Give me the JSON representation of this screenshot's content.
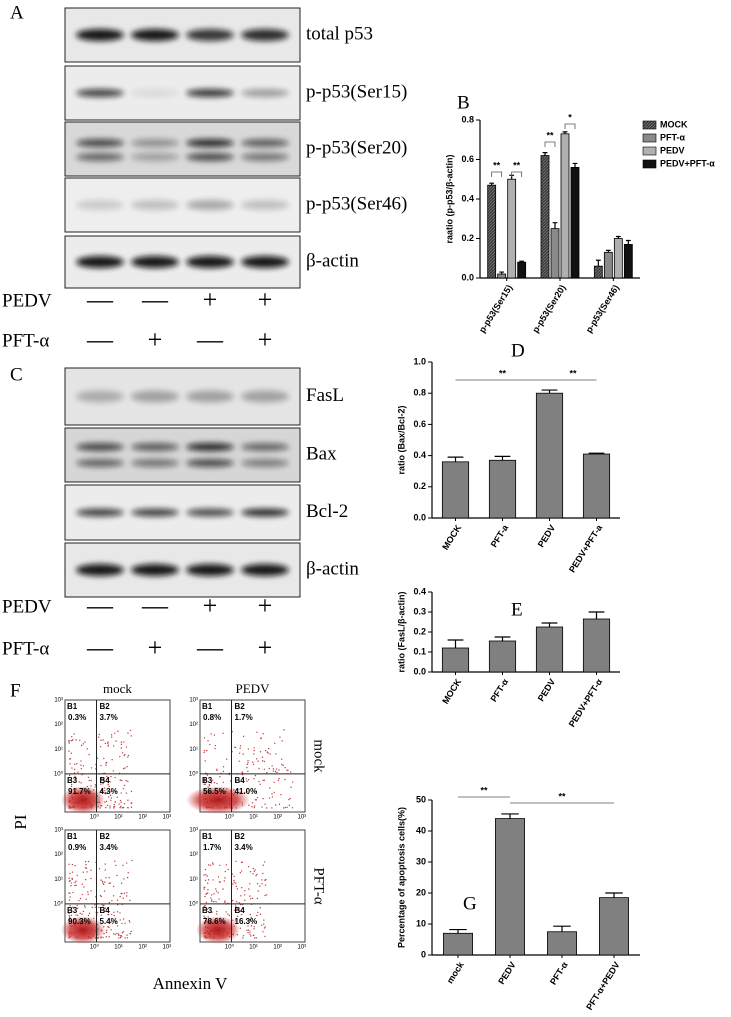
{
  "panels": [
    "A",
    "B",
    "C",
    "D",
    "E",
    "F",
    "G"
  ],
  "blots_a": {
    "labels": [
      "total p53",
      "p-p53(Ser15)",
      "p-p53(Ser20)",
      "p-p53(Ser46)",
      "β-actin"
    ],
    "treatments": [
      {
        "name": "PEDV",
        "marks": [
          "—",
          "—",
          "+",
          "+"
        ]
      },
      {
        "name": "PFT-α",
        "marks": [
          "—",
          "+",
          "—",
          "+"
        ]
      }
    ]
  },
  "blots_c": {
    "labels": [
      "FasL",
      "Bax",
      "Bcl-2",
      "β-actin"
    ],
    "treatments": [
      {
        "name": "PEDV",
        "marks": [
          "—",
          "—",
          "+",
          "+"
        ]
      },
      {
        "name": "PFT-α",
        "marks": [
          "—",
          "+",
          "—",
          "+"
        ]
      }
    ]
  },
  "chart_data": [
    {
      "type": "bar",
      "ylabel": "raatio (p-p53/β-actin)",
      "categories": [
        "p-p53(Ser15)",
        "p-p53(Ser20)",
        "p-p53(Ser46)"
      ],
      "series": [
        {
          "name": "MOCK",
          "color": "#3a3a3a",
          "values": [
            0.47,
            0.62,
            0.06
          ],
          "errors": [
            0.01,
            0.015,
            0.03
          ]
        },
        {
          "name": "PFT-α",
          "color": "#8a8a8a",
          "values": [
            0.02,
            0.25,
            0.13
          ],
          "errors": [
            0.01,
            0.03,
            0.01
          ]
        },
        {
          "name": "PEDV",
          "color": "#b0b0b0",
          "values": [
            0.5,
            0.73,
            0.2
          ],
          "errors": [
            0.02,
            0.01,
            0.01
          ]
        },
        {
          "name": "PEDV+PFT-α",
          "color": "#111111",
          "values": [
            0.08,
            0.56,
            0.17
          ],
          "errors": [
            0.005,
            0.02,
            0.02
          ]
        }
      ],
      "ylim": [
        0,
        0.8
      ],
      "yticks": [
        {
          "value": 0,
          "label": "0.0"
        },
        0.2,
        0.4,
        0.6,
        0.8
      ],
      "annotations": [
        "**",
        "**",
        "**",
        "*"
      ]
    },
    {
      "type": "bar",
      "ylabel": "ratio (Bax/Bcl-2)",
      "categories": [
        "MOCK",
        "PFT-a",
        "PEDV",
        "PEDV+PFT-a"
      ],
      "color": "#808080",
      "values": [
        0.36,
        0.37,
        0.8,
        0.41
      ],
      "errors": [
        0.03,
        0.025,
        0.02,
        0.005
      ],
      "ylim": [
        0,
        1
      ],
      "yticks": [
        {
          "value": 0,
          "label": "0.0"
        },
        0.2,
        0.4,
        0.6,
        0.8,
        {
          "value": 1,
          "label": "1.0"
        }
      ],
      "annotations": [
        "**",
        "**"
      ]
    },
    {
      "type": "bar",
      "ylabel": "ratio (FasL/β-actin)",
      "categories": [
        "MOCK",
        "PFT-α",
        "PEDV",
        "PEDV+PFT-α"
      ],
      "color": "#808080",
      "values": [
        0.12,
        0.155,
        0.225,
        0.265
      ],
      "errors": [
        0.04,
        0.02,
        0.02,
        0.035
      ],
      "ylim": [
        0,
        0.4
      ],
      "yticks": [
        {
          "value": 0,
          "label": "0.0"
        },
        0.1,
        0.2,
        0.3,
        0.4
      ]
    },
    {
      "type": "bar",
      "ylabel": "Percentage of apoptosis cells(%)",
      "categories": [
        "mock",
        "PEDV",
        "PFT-α",
        "PFT-α+PEDV"
      ],
      "color": "#808080",
      "values": [
        7,
        44,
        7.5,
        18.5
      ],
      "errors": [
        1.2,
        1.5,
        1.8,
        1.5
      ],
      "ylim": [
        0,
        50
      ],
      "yticks": [
        0,
        10,
        20,
        30,
        40,
        50
      ],
      "annotations": [
        "**",
        "**"
      ]
    }
  ],
  "flow": {
    "columns": [
      "mock",
      "PEDV"
    ],
    "rows": [
      "mock",
      "PFT-α"
    ],
    "xlabel": "Annexin V",
    "ylabel": "PI",
    "quadrants": [
      "B1",
      "B2",
      "B3",
      "B4"
    ],
    "ticks": [
      "10⁰",
      "10¹",
      "10²",
      "10³"
    ],
    "plots": [
      [
        "0.3%",
        "3.7%",
        "91.7%",
        "4.3%"
      ],
      [
        "0.8%",
        "1.7%",
        "56.5%",
        "41.0%"
      ],
      [
        "0.9%",
        "3.4%",
        "90.3%",
        "5.4%"
      ],
      [
        "1.7%",
        "3.4%",
        "78.6%",
        "16.3%"
      ]
    ]
  }
}
